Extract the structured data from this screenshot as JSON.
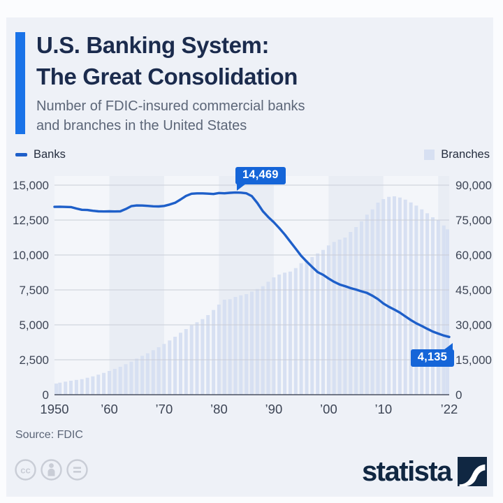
{
  "header": {
    "title_line1": "U.S. Banking System:",
    "title_line2": "The Great Consolidation",
    "subtitle_line1": "Number of FDIC-insured commercial banks",
    "subtitle_line2": "and branches in the United States"
  },
  "legend": {
    "banks_label": "Banks",
    "branches_label": "Branches"
  },
  "annotations": {
    "banks_peak_label": "14,469",
    "banks_latest_label": "4,135"
  },
  "footer": {
    "source": "Source: FDIC",
    "brand": "statista",
    "license_icons": [
      "cc-icon",
      "attribution-person-icon",
      "no-derivatives-equals-icon"
    ]
  },
  "colors": {
    "accent_bar": "#1a73e8",
    "line": "#1e5fc9",
    "bar": "#d7e0f2",
    "callout_bg": "#1565d8",
    "band_light": "#f4f6fa",
    "band_dark": "#e9edf4",
    "grid": "#c9cdd7",
    "axis_line": "#4a5160",
    "title_text": "#1b2b4d",
    "muted_text": "#5c6678",
    "tick_text": "#3d4555",
    "brand_navy": "#102742",
    "card_bg": "#eef1f7"
  },
  "chart_data": {
    "type": "line+bar",
    "title": "U.S. Banking System: The Great Consolidation",
    "x_start": 1950,
    "x_end": 2022,
    "left_axis": {
      "label": "Banks",
      "min": 0,
      "max": 15000,
      "tick_step": 2500
    },
    "right_axis": {
      "label": "Branches",
      "min": 0,
      "max": 90000,
      "tick_step": 15000
    },
    "x_ticks": [
      {
        "year": 1950,
        "label": "1950"
      },
      {
        "year": 1960,
        "label": "’60"
      },
      {
        "year": 1970,
        "label": "’70"
      },
      {
        "year": 1980,
        "label": "’80"
      },
      {
        "year": 1990,
        "label": "’90"
      },
      {
        "year": 2000,
        "label": "’00"
      },
      {
        "year": 2010,
        "label": "’10"
      },
      {
        "year": 2022,
        "label": "’22"
      }
    ],
    "series": [
      {
        "name": "Banks",
        "type": "line",
        "axis": "left",
        "values": [
          13446,
          13455,
          13439,
          13432,
          13323,
          13237,
          13218,
          13165,
          13124,
          13114,
          13126,
          13115,
          13124,
          13291,
          13493,
          13544,
          13538,
          13514,
          13487,
          13473,
          13511,
          13612,
          13733,
          13976,
          14230,
          14384,
          14410,
          14411,
          14391,
          14364,
          14434,
          14414,
          14451,
          14469,
          14460,
          14417,
          14210,
          13723,
          13137,
          12715,
          12347,
          11927,
          11466,
          10958,
          10452,
          9942,
          9528,
          9143,
          8774,
          8580,
          8315,
          8080,
          7888,
          7770,
          7631,
          7526,
          7401,
          7284,
          7087,
          6840,
          6530,
          6291,
          6096,
          5876,
          5607,
          5340,
          5112,
          4918,
          4717,
          4519,
          4377,
          4237,
          4135
        ]
      },
      {
        "name": "Branches",
        "type": "bar",
        "axis": "right",
        "values": [
          4800,
          5200,
          5600,
          6000,
          6350,
          6700,
          7300,
          7900,
          8600,
          9400,
          10200,
          11100,
          12000,
          13100,
          14200,
          15500,
          16700,
          17800,
          19100,
          20400,
          21800,
          23300,
          24900,
          26600,
          28200,
          29800,
          31100,
          32500,
          34200,
          36400,
          38700,
          40800,
          41000,
          42000,
          42700,
          43200,
          44300,
          45400,
          46600,
          48500,
          50400,
          51600,
          52400,
          52900,
          54400,
          56500,
          57700,
          59100,
          60700,
          62200,
          64100,
          65600,
          66600,
          67500,
          69900,
          72000,
          74500,
          77300,
          79600,
          82500,
          84000,
          85000,
          85200,
          84700,
          83800,
          82600,
          81200,
          79600,
          77900,
          76200,
          74900,
          72700,
          71000
        ]
      }
    ],
    "annotations": [
      {
        "series": "Banks",
        "year": 1983,
        "value": 14469,
        "label": "14,469"
      },
      {
        "series": "Banks",
        "year": 2022,
        "value": 4135,
        "label": "4,135"
      }
    ],
    "grid": true,
    "legend_position": "top"
  }
}
